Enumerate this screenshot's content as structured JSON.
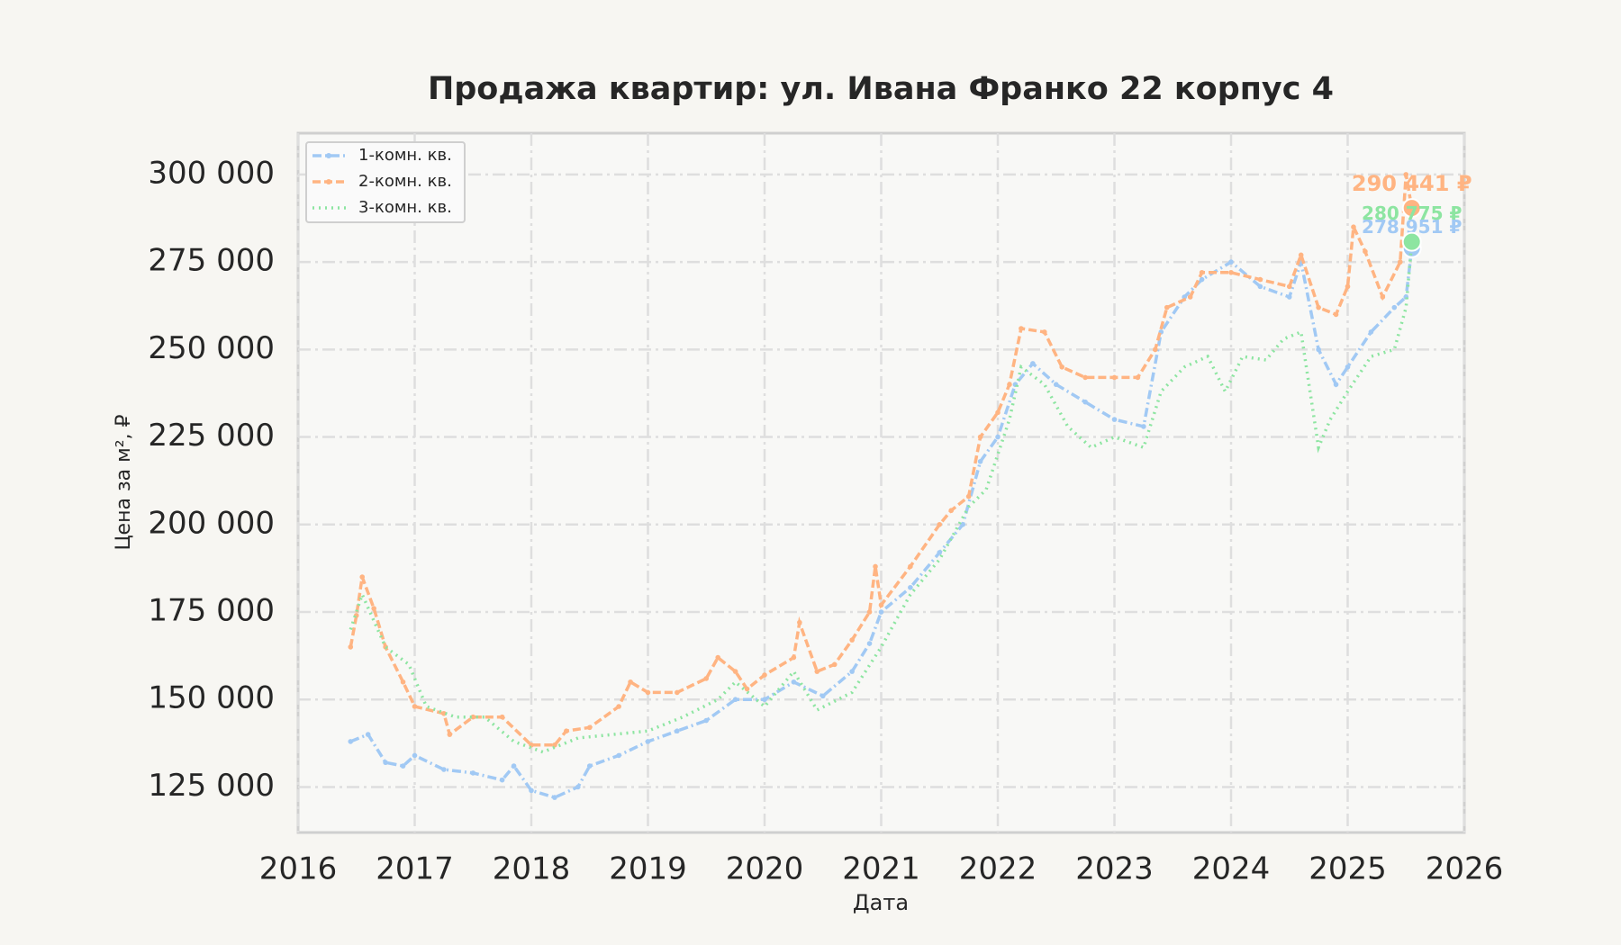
{
  "chart_data": {
    "type": "line",
    "title": "Продажа квартир: ул. Ивана Франко 22 корпус 4",
    "x_label": "Дата",
    "y_label": "Цена за м², ₽",
    "xlim": [
      2016,
      2026
    ],
    "xticks": [
      2016,
      2017,
      2018,
      2019,
      2020,
      2021,
      2022,
      2023,
      2024,
      2025,
      2026
    ],
    "ylim": [
      112000,
      311800
    ],
    "yticks": [
      {
        "value": 125000,
        "label": "125 000"
      },
      {
        "value": 150000,
        "label": "150 000"
      },
      {
        "value": 175000,
        "label": "175 000"
      },
      {
        "value": 200000,
        "label": "200 000"
      },
      {
        "value": 225000,
        "label": "225 000"
      },
      {
        "value": 250000,
        "label": "250 000"
      },
      {
        "value": 275000,
        "label": "275 000"
      },
      {
        "value": 300000,
        "label": "300 000"
      }
    ],
    "grid": true,
    "legend": "upper left",
    "series": [
      {
        "name": "1-комн. кв.",
        "color": "#a1c9f4",
        "linestyle": "dashdot",
        "marker": true,
        "x": [
          2016.45,
          2016.6,
          2016.75,
          2016.9,
          2017.0,
          2017.25,
          2017.5,
          2017.75,
          2017.85,
          2018.0,
          2018.2,
          2018.4,
          2018.5,
          2018.75,
          2019.0,
          2019.25,
          2019.5,
          2019.75,
          2020.0,
          2020.25,
          2020.5,
          2020.75,
          2020.9,
          2021.0,
          2021.25,
          2021.5,
          2021.7,
          2021.85,
          2022.0,
          2022.15,
          2022.3,
          2022.5,
          2022.75,
          2023.0,
          2023.25,
          2023.4,
          2023.6,
          2023.75,
          2024.0,
          2024.25,
          2024.5,
          2024.6,
          2024.75,
          2024.9,
          2025.0,
          2025.2,
          2025.4,
          2025.5,
          2025.55
        ],
        "values": [
          138000,
          140000,
          132000,
          131000,
          134000,
          130000,
          129000,
          127000,
          131000,
          124000,
          122000,
          125000,
          131000,
          134000,
          138000,
          141000,
          144000,
          150000,
          150000,
          155000,
          151000,
          158000,
          166000,
          175000,
          182000,
          192000,
          200000,
          218000,
          225000,
          240000,
          246000,
          240000,
          235000,
          230000,
          228000,
          255000,
          265000,
          270000,
          275000,
          268000,
          265000,
          275000,
          250000,
          240000,
          245000,
          255000,
          262000,
          265000,
          278951
        ],
        "value_labels": [
          null,
          null,
          null,
          null,
          null,
          null,
          null,
          null,
          null,
          null,
          null,
          null,
          null,
          null,
          null,
          null,
          null,
          null,
          null,
          null,
          null,
          null,
          null,
          null,
          null,
          null,
          null,
          null,
          null,
          null,
          null,
          null,
          null,
          null,
          null,
          null,
          null,
          null,
          null,
          null,
          null,
          null,
          null,
          null,
          null,
          null,
          null,
          null,
          "278 951 ₽"
        ]
      },
      {
        "name": "2-комн. кв.",
        "color": "#ffb482",
        "linestyle": "dashed",
        "marker": true,
        "x": [
          2016.45,
          2016.5,
          2016.55,
          2016.65,
          2016.75,
          2016.9,
          2017.0,
          2017.25,
          2017.3,
          2017.5,
          2017.75,
          2018.0,
          2018.2,
          2018.3,
          2018.5,
          2018.75,
          2018.85,
          2019.0,
          2019.25,
          2019.5,
          2019.6,
          2019.75,
          2019.85,
          2020.0,
          2020.25,
          2020.3,
          2020.45,
          2020.6,
          2020.75,
          2020.9,
          2020.95,
          2021.0,
          2021.25,
          2021.5,
          2021.6,
          2021.75,
          2021.85,
          2022.0,
          2022.1,
          2022.2,
          2022.4,
          2022.55,
          2022.75,
          2023.0,
          2023.2,
          2023.35,
          2023.45,
          2023.65,
          2023.75,
          2024.0,
          2024.25,
          2024.5,
          2024.6,
          2024.75,
          2024.9,
          2025.0,
          2025.05,
          2025.15,
          2025.3,
          2025.45,
          2025.5,
          2025.55
        ],
        "values": [
          165000,
          174000,
          185000,
          176000,
          165000,
          155000,
          148000,
          146000,
          140000,
          145000,
          145000,
          137000,
          137000,
          141000,
          142000,
          148000,
          155000,
          152000,
          152000,
          156000,
          162000,
          158000,
          153000,
          157000,
          162000,
          172000,
          158000,
          160000,
          167000,
          175000,
          188000,
          177000,
          188000,
          200000,
          204000,
          208000,
          225000,
          232000,
          240000,
          256000,
          255000,
          245000,
          242000,
          242000,
          242000,
          250000,
          262000,
          265000,
          272000,
          272000,
          270000,
          268000,
          277000,
          262000,
          260000,
          268000,
          285000,
          278000,
          265000,
          275000,
          300000,
          290441
        ],
        "value_labels": [
          null,
          null,
          null,
          null,
          null,
          null,
          null,
          null,
          null,
          null,
          null,
          null,
          null,
          null,
          null,
          null,
          null,
          null,
          null,
          null,
          null,
          null,
          null,
          null,
          null,
          null,
          null,
          null,
          null,
          null,
          null,
          null,
          null,
          null,
          null,
          null,
          null,
          null,
          null,
          null,
          null,
          null,
          null,
          null,
          null,
          null,
          null,
          null,
          null,
          null,
          null,
          null,
          null,
          null,
          null,
          null,
          null,
          null,
          null,
          null,
          null,
          "290 441 ₽"
        ]
      },
      {
        "name": "3-комн. кв.",
        "color": "#8de5a1",
        "linestyle": "dotted",
        "marker": false,
        "x": [
          2016.45,
          2016.55,
          2016.75,
          2016.95,
          2017.1,
          2017.35,
          2017.6,
          2017.85,
          2018.1,
          2018.4,
          2018.7,
          2019.0,
          2019.3,
          2019.6,
          2019.75,
          2020.0,
          2020.25,
          2020.45,
          2020.75,
          2021.0,
          2021.25,
          2021.5,
          2021.75,
          2021.9,
          2022.1,
          2022.2,
          2022.4,
          2022.6,
          2022.8,
          2023.0,
          2023.25,
          2023.4,
          2023.6,
          2023.8,
          2023.95,
          2024.1,
          2024.3,
          2024.45,
          2024.6,
          2024.75,
          2024.85,
          2025.0,
          2025.2,
          2025.4,
          2025.5,
          2025.55
        ],
        "values": [
          170000,
          180000,
          165000,
          160000,
          148000,
          145000,
          145000,
          138000,
          135000,
          139000,
          140000,
          141000,
          145000,
          150000,
          155000,
          148000,
          158000,
          147000,
          152000,
          165000,
          180000,
          190000,
          205000,
          210000,
          230000,
          245000,
          240000,
          228000,
          222000,
          225000,
          222000,
          238000,
          245000,
          248000,
          238000,
          248000,
          247000,
          253000,
          255000,
          222000,
          230000,
          238000,
          248000,
          250000,
          262000,
          280775
        ],
        "value_labels": [
          null,
          null,
          null,
          null,
          null,
          null,
          null,
          null,
          null,
          null,
          null,
          null,
          null,
          null,
          null,
          null,
          null,
          null,
          null,
          null,
          null,
          null,
          null,
          null,
          null,
          null,
          null,
          null,
          null,
          null,
          null,
          null,
          null,
          null,
          null,
          null,
          null,
          null,
          null,
          null,
          null,
          null,
          null,
          null,
          null,
          "280 775 ₽"
        ]
      }
    ]
  }
}
